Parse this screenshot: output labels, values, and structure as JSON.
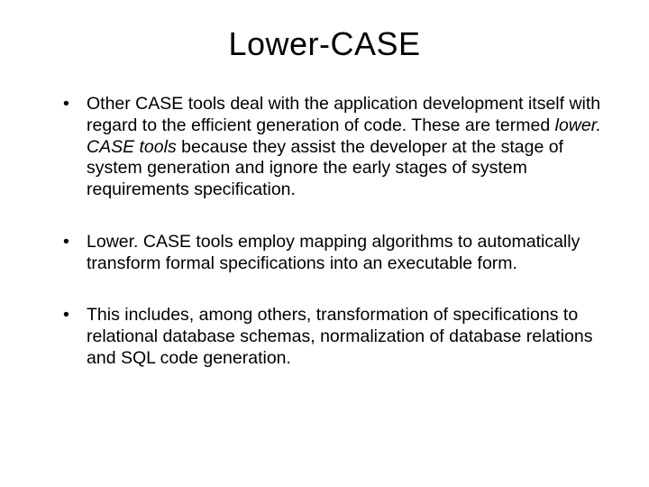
{
  "title": "Lower-CASE",
  "bullets": [
    {
      "prefix": "Other CASE tools deal with the application development itself with regard to the efficient generation of code. These are termed ",
      "italic": "lower. CASE tools ",
      "suffix": "because they assist the developer at the stage of system generation and ignore the early stages of system requirements specification."
    },
    {
      "text": "Lower. CASE tools employ mapping algorithms to automatically transform formal specifications into an executable form."
    },
    {
      "text": "This includes, among others, transformation of specifications to relational database schemas, normalization of database relations and SQL code generation."
    }
  ],
  "colors": {
    "background": "#ffffff",
    "text": "#000000"
  },
  "typography": {
    "title_fontsize": 36,
    "body_fontsize": 19.5,
    "font_family": "Arial"
  }
}
